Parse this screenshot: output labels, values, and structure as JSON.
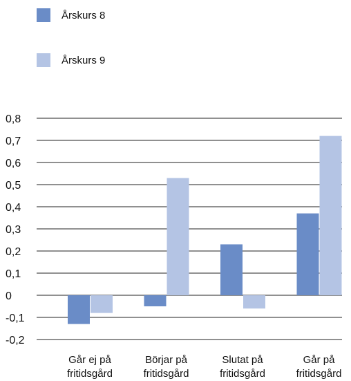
{
  "chart_data": {
    "type": "bar",
    "categories": [
      [
        "Går ej på",
        "fritidsgård"
      ],
      [
        "Börjar på",
        "fritidsgård"
      ],
      [
        "Slutat på",
        "fritidsgård"
      ],
      [
        "Går på",
        "fritidsgård"
      ]
    ],
    "series": [
      {
        "name": "Årskurs 8",
        "color": "#6a8cc7",
        "values": [
          -0.13,
          -0.05,
          0.23,
          0.37
        ]
      },
      {
        "name": "Årskurs 9",
        "color": "#b4c4e4",
        "values": [
          -0.08,
          0.53,
          -0.06,
          0.72
        ]
      }
    ],
    "ylim": [
      -0.2,
      0.8
    ],
    "yticks": [
      "0,8",
      "0,7",
      "0,6",
      "0,5",
      "0,4",
      "0,3",
      "0,2",
      "0,1",
      "0",
      "-0,1",
      "-0,2"
    ],
    "grid": true,
    "legend": "top-left",
    "title": "",
    "xlabel": "",
    "ylabel": ""
  }
}
